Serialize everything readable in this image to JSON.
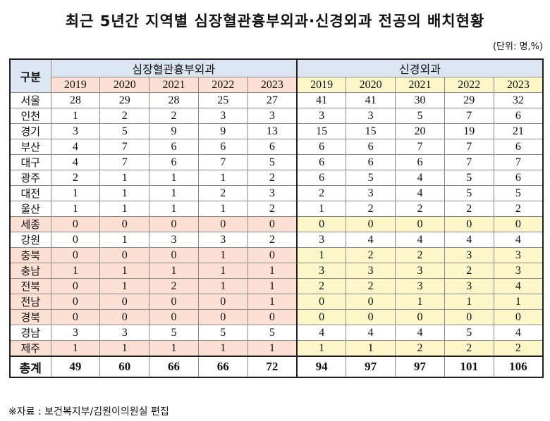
{
  "title": "최근 5년간 지역별 심장혈관흉부외과·신경외과 전공의 배치현황",
  "unit": "(단위: 명,%)",
  "table": {
    "row_header": "구분",
    "group_left": "심장혈관흉부외과",
    "group_right": "신경외과",
    "years": [
      "2019",
      "2020",
      "2021",
      "2022",
      "2023"
    ],
    "rows": [
      {
        "region": "서울",
        "left": [
          "28",
          "29",
          "28",
          "25",
          "27"
        ],
        "right": [
          "41",
          "41",
          "30",
          "29",
          "32"
        ],
        "highlight": false
      },
      {
        "region": "인천",
        "left": [
          "1",
          "2",
          "2",
          "3",
          "3"
        ],
        "right": [
          "3",
          "3",
          "5",
          "7",
          "6"
        ],
        "highlight": false
      },
      {
        "region": "경기",
        "left": [
          "3",
          "5",
          "9",
          "9",
          "13"
        ],
        "right": [
          "15",
          "15",
          "20",
          "19",
          "21"
        ],
        "highlight": false
      },
      {
        "region": "부산",
        "left": [
          "4",
          "7",
          "6",
          "6",
          "6"
        ],
        "right": [
          "6",
          "6",
          "7",
          "7",
          "6"
        ],
        "highlight": false
      },
      {
        "region": "대구",
        "left": [
          "4",
          "7",
          "6",
          "7",
          "5"
        ],
        "right": [
          "6",
          "6",
          "6",
          "7",
          "7"
        ],
        "highlight": false
      },
      {
        "region": "광주",
        "left": [
          "2",
          "1",
          "1",
          "1",
          "2"
        ],
        "right": [
          "6",
          "5",
          "4",
          "5",
          "6"
        ],
        "highlight": false
      },
      {
        "region": "대전",
        "left": [
          "1",
          "1",
          "1",
          "2",
          "3"
        ],
        "right": [
          "2",
          "3",
          "4",
          "5",
          "5"
        ],
        "highlight": false
      },
      {
        "region": "울산",
        "left": [
          "1",
          "1",
          "1",
          "1",
          "2"
        ],
        "right": [
          "1",
          "2",
          "2",
          "2",
          "2"
        ],
        "highlight": false
      },
      {
        "region": "세종",
        "left": [
          "0",
          "0",
          "0",
          "0",
          "0"
        ],
        "right": [
          "0",
          "0",
          "0",
          "0",
          "0"
        ],
        "highlight": true
      },
      {
        "region": "강원",
        "left": [
          "0",
          "1",
          "3",
          "3",
          "2"
        ],
        "right": [
          "3",
          "4",
          "4",
          "4",
          "4"
        ],
        "highlight": false
      },
      {
        "region": "충북",
        "left": [
          "0",
          "0",
          "0",
          "1",
          "0"
        ],
        "right": [
          "1",
          "2",
          "2",
          "3",
          "3"
        ],
        "highlight": true
      },
      {
        "region": "충남",
        "left": [
          "1",
          "1",
          "1",
          "1",
          "1"
        ],
        "right": [
          "3",
          "3",
          "3",
          "2",
          "3"
        ],
        "highlight": true
      },
      {
        "region": "전북",
        "left": [
          "0",
          "1",
          "2",
          "1",
          "1"
        ],
        "right": [
          "2",
          "2",
          "3",
          "3",
          "4"
        ],
        "highlight": true
      },
      {
        "region": "전남",
        "left": [
          "0",
          "0",
          "0",
          "0",
          "1"
        ],
        "right": [
          "0",
          "0",
          "1",
          "1",
          "1"
        ],
        "highlight": true
      },
      {
        "region": "경북",
        "left": [
          "0",
          "0",
          "0",
          "0",
          "0"
        ],
        "right": [
          "0",
          "0",
          "0",
          "0",
          "0"
        ],
        "highlight": true
      },
      {
        "region": "경남",
        "left": [
          "3",
          "3",
          "5",
          "5",
          "5"
        ],
        "right": [
          "4",
          "4",
          "4",
          "5",
          "4"
        ],
        "highlight": false
      },
      {
        "region": "제주",
        "left": [
          "1",
          "1",
          "1",
          "1",
          "1"
        ],
        "right": [
          "1",
          "1",
          "2",
          "2",
          "2"
        ],
        "highlight": true
      }
    ],
    "total": {
      "region": "총계",
      "left": [
        "49",
        "60",
        "66",
        "66",
        "72"
      ],
      "right": [
        "94",
        "97",
        "97",
        "101",
        "106"
      ]
    }
  },
  "source": "※자료 : 보건복지부/김원이의원실 편집"
}
